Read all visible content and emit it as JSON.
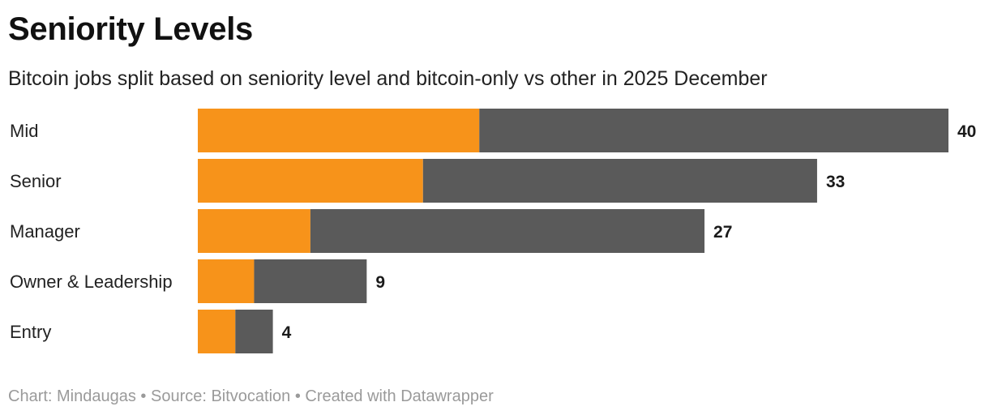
{
  "header": {
    "title": "Seniority Levels",
    "subtitle": "Bitcoin jobs split based on seniority level and bitcoin-only vs other in 2025 December"
  },
  "footer": {
    "credit": "Chart: Mindaugas • Source: Bitvocation • Created with Datawrapper"
  },
  "colors": {
    "bitcoin_only": "#f7931a",
    "other": "#5a5a5a"
  },
  "chart_data": {
    "type": "bar",
    "orientation": "horizontal",
    "stacked": true,
    "title": "Seniority Levels",
    "subtitle": "Bitcoin jobs split based on seniority level and bitcoin-only vs other in 2025 December",
    "categories": [
      "Mid",
      "Senior",
      "Manager",
      "Owner & Leadership",
      "Entry"
    ],
    "series": [
      {
        "name": "bitcoin-only",
        "color": "#f7931a",
        "values": [
          15,
          12,
          6,
          3,
          2
        ]
      },
      {
        "name": "other",
        "color": "#5a5a5a",
        "values": [
          25,
          21,
          21,
          6,
          2
        ]
      }
    ],
    "totals": [
      40,
      33,
      27,
      9,
      4
    ],
    "xlim": [
      0,
      40
    ],
    "xlabel": "",
    "ylabel": "",
    "grid": false,
    "legend": "none"
  }
}
